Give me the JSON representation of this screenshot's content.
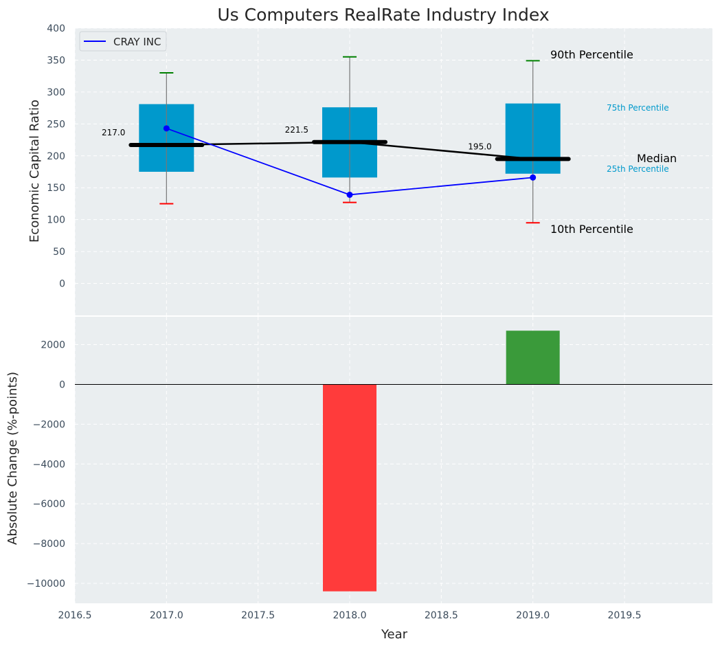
{
  "chart_data": [
    {
      "type": "box",
      "title": "Us Computers RealRate Industry Index",
      "xlabel": "",
      "ylabel": "Economic Capital Ratio",
      "ylim": [
        -50,
        400
      ],
      "yticks": [
        "0",
        "50",
        "100",
        "150",
        "200",
        "250",
        "300",
        "350",
        "400"
      ],
      "grid": true,
      "legend": {
        "placement": "upper-left",
        "entries": [
          "CRAY INC"
        ]
      },
      "x": [
        2017,
        2018,
        2019
      ],
      "boxes": [
        {
          "year": 2017,
          "p10": 125,
          "p25": 175,
          "median": 217.0,
          "p75": 281,
          "p90": 330
        },
        {
          "year": 2018,
          "p10": 127,
          "p25": 166,
          "median": 221.5,
          "p75": 276,
          "p90": 355
        },
        {
          "year": 2019,
          "p10": 95,
          "p25": 172,
          "median": 195.0,
          "p75": 282,
          "p90": 349
        }
      ],
      "median_labels": [
        "217.0",
        "221.5",
        "195.0"
      ],
      "series": [
        {
          "name": "CRAY INC",
          "color": "#0000ff",
          "values": [
            243,
            139,
            166
          ]
        }
      ],
      "annotations": {
        "p90": "90th Percentile",
        "p75": "75th Percentile",
        "median": "Median",
        "p25": "25th Percentile",
        "p10": "10th Percentile"
      },
      "colors": {
        "box": "#0099cc",
        "median": "#000000",
        "upper_cap": "#008000",
        "lower_cap": "#ff0000",
        "series": "#0000ff",
        "panel_bg": "#eaeef0"
      }
    },
    {
      "type": "bar",
      "xlabel": "Year",
      "ylabel": "Absolute Change (%-points)",
      "ylim": [
        -11000,
        3400
      ],
      "yticks": [
        "−10000",
        "−8000",
        "−6000",
        "−4000",
        "−2000",
        "0",
        "2000"
      ],
      "xlim": [
        2016.5,
        2019.98
      ],
      "xticks": [
        "2016.5",
        "2017.0",
        "2017.5",
        "2018.0",
        "2018.5",
        "2019.0",
        "2019.5"
      ],
      "x": [
        2018,
        2019
      ],
      "values": [
        -10400,
        2700
      ],
      "bar_colors": [
        "#ff3b3b",
        "#3a9a3a"
      ],
      "grid": true
    }
  ]
}
